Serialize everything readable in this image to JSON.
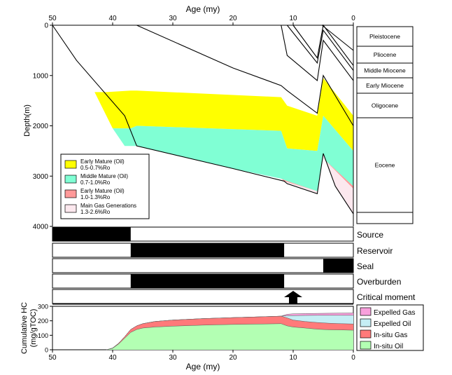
{
  "chart_data": [
    {
      "type": "area",
      "panel": "burial-history",
      "xlabel_top": "Age (my)",
      "ylabel": "Depth(m)",
      "xlim": [
        50,
        0
      ],
      "ylim": [
        0,
        4000
      ],
      "x_ticks": [
        50,
        40,
        30,
        20,
        10,
        0
      ],
      "y_ticks": [
        0,
        1000,
        2000,
        3000,
        4000
      ],
      "burial_curves": [
        [
          [
            50,
            0
          ],
          [
            46,
            700
          ],
          [
            42,
            1250
          ],
          [
            38,
            1800
          ],
          [
            36,
            2400
          ],
          [
            20,
            2850
          ],
          [
            11.5,
            3100
          ],
          [
            11,
            3150
          ],
          [
            6,
            3350
          ],
          [
            5,
            2550
          ],
          [
            3,
            3200
          ],
          [
            0,
            3750
          ]
        ],
        [
          [
            36,
            0
          ],
          [
            20,
            850
          ],
          [
            12,
            1200
          ],
          [
            11,
            1300
          ],
          [
            6,
            1750
          ],
          [
            5,
            1000
          ],
          [
            0,
            2000
          ]
        ],
        [
          [
            12,
            0
          ],
          [
            11,
            600
          ],
          [
            6,
            1100
          ],
          [
            5,
            300
          ],
          [
            0,
            1100
          ]
        ],
        [
          [
            11,
            0
          ],
          [
            6,
            750
          ],
          [
            5,
            100
          ],
          [
            0,
            900
          ]
        ],
        [
          [
            10,
            0
          ],
          [
            6,
            650
          ],
          [
            5,
            0
          ],
          [
            0,
            800
          ]
        ],
        [
          [
            5.2,
            0
          ],
          [
            0,
            500
          ]
        ]
      ],
      "maturity_windows": [
        {
          "name": "Early Mature (Oil)",
          "range": "0.5-0.7%Ro",
          "color": "#ffff00",
          "top": [
            [
              43,
              1330
            ],
            [
              41,
              1330
            ],
            [
              37,
              1300
            ],
            [
              36,
              1300
            ],
            [
              36,
              1300
            ],
            [
              12,
              1430
            ],
            [
              11,
              1600
            ],
            [
              6,
              1800
            ],
            [
              5,
              1050
            ],
            [
              0,
              1800
            ]
          ],
          "bottom": [
            [
              40,
              2050
            ],
            [
              38,
              2050
            ],
            [
              37,
              2050
            ],
            [
              36,
              2000
            ],
            [
              12,
              2100
            ],
            [
              11,
              2450
            ],
            [
              6,
              2500
            ],
            [
              5,
              1800
            ],
            [
              0,
              2500
            ]
          ]
        },
        {
          "name": "Middle Mature (Oil)",
          "range": "0.7-1.0%Ro",
          "color": "#80ffd4",
          "top": [
            [
              40,
              2050
            ],
            [
              38,
              2050
            ],
            [
              37,
              2050
            ],
            [
              36,
              2000
            ],
            [
              12,
              2100
            ],
            [
              11,
              2450
            ],
            [
              6,
              2500
            ],
            [
              5,
              1800
            ],
            [
              0,
              2500
            ]
          ],
          "bottom": [
            [
              38,
              2400
            ],
            [
              36,
              2400
            ],
            [
              20,
              2850
            ],
            [
              12,
              3050
            ],
            [
              11,
              3100
            ],
            [
              6,
              3300
            ],
            [
              5,
              2650
            ],
            [
              0,
              3200
            ]
          ]
        },
        {
          "name": "Early Mature (Oil)",
          "range": "1.0-1.3%Ro",
          "color": "#ff9999",
          "top": [
            [
              12,
              3050
            ],
            [
              11,
              3100
            ],
            [
              6,
              3300
            ],
            [
              5,
              2650
            ],
            [
              0,
              3200
            ]
          ],
          "bottom": [
            [
              11.5,
              3100
            ],
            [
              6,
              3300
            ],
            [
              5,
              2650
            ],
            [
              0,
              3250
            ]
          ]
        },
        {
          "name": "Main Gas Generations",
          "range": "1.3-2.6%Ro",
          "color": "#fce8ee",
          "top": [
            [
              11.5,
              3100
            ],
            [
              6,
              3300
            ],
            [
              5,
              2650
            ],
            [
              0,
              3250
            ]
          ],
          "bottom": [
            [
              11.5,
              3100
            ],
            [
              11,
              3150
            ],
            [
              6,
              3350
            ],
            [
              5,
              2550
            ],
            [
              3,
              3200
            ],
            [
              0,
              3750
            ]
          ]
        }
      ],
      "stratigraphy": [
        "Pleistocene",
        "Pliocene",
        "Middle Miocene",
        "Early Miocene",
        "Oligocene",
        "Eocene",
        ""
      ]
    },
    {
      "type": "table",
      "panel": "petroleum-system-events",
      "events": [
        {
          "label": "Source",
          "intervals": [
            [
              50,
              37
            ]
          ]
        },
        {
          "label": "Reservoir",
          "intervals": [
            [
              37,
              11.5
            ]
          ]
        },
        {
          "label": "Seal",
          "intervals": [
            [
              5,
              0
            ]
          ]
        },
        {
          "label": "Overburden",
          "intervals": [
            [
              37,
              11.5
            ]
          ]
        },
        {
          "label": "Critical moment",
          "marker": 10
        }
      ]
    },
    {
      "type": "area",
      "panel": "cumulative-hc",
      "xlabel": "Age (my)",
      "ylabel": "Cumulative HC (mg/gTOC)",
      "xlim": [
        50,
        0
      ],
      "ylim": [
        0,
        300
      ],
      "y_ticks": [
        0,
        100,
        200,
        300
      ],
      "x": [
        41,
        40,
        39,
        38,
        37,
        36,
        35,
        33,
        30,
        25,
        20,
        15,
        12,
        11,
        10,
        8,
        6,
        4,
        2,
        0
      ],
      "series": [
        {
          "name": "In-situ Oil",
          "color": "#b3ffb3",
          "values": [
            0,
            10,
            40,
            80,
            120,
            140,
            150,
            157,
            163,
            170,
            175,
            178,
            180,
            165,
            157,
            150,
            142,
            138,
            137,
            135
          ]
        },
        {
          "name": "In-situ Gas",
          "color": "#ff7a7a",
          "values": [
            0,
            12,
            45,
            90,
            140,
            165,
            180,
            195,
            205,
            215,
            222,
            228,
            232,
            220,
            205,
            195,
            188,
            183,
            180,
            178
          ]
        },
        {
          "name": "Expelled Oil",
          "color": "#c5eef5",
          "values": [
            0,
            12,
            45,
            90,
            140,
            165,
            180,
            195,
            205,
            215,
            222,
            228,
            232,
            235,
            236,
            237,
            238,
            238,
            238,
            238
          ]
        },
        {
          "name": "Expelled Gas",
          "color": "#f8a0dc",
          "values": [
            0,
            12,
            45,
            90,
            140,
            165,
            180,
            195,
            205,
            215,
            222,
            228,
            232,
            245,
            248,
            250,
            251,
            252,
            253,
            254
          ]
        }
      ]
    }
  ],
  "labels": {
    "age_top": "Age (my)",
    "age_bottom": "Age (my)",
    "depth": "Depth(m)",
    "cum_line1": "Cumulative HC",
    "cum_line2": "(mg/gTOC)"
  }
}
